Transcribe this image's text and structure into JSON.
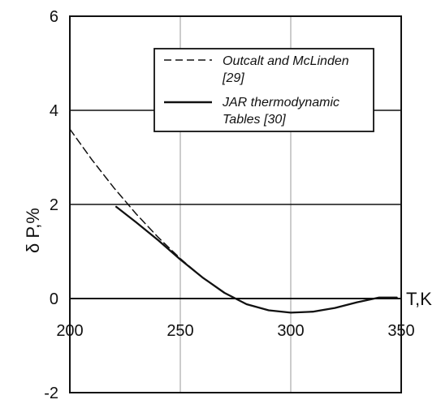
{
  "chart_data": {
    "type": "line",
    "xlabel": "T,K",
    "ylabel": "δ P,%",
    "xlim": [
      200,
      350
    ],
    "ylim": [
      -2,
      6
    ],
    "x_ticks": [
      "200",
      "250",
      "300",
      "350"
    ],
    "y_ticks": [
      "-2",
      "0",
      "2",
      "4",
      "6"
    ],
    "grid": true,
    "legend_position": "top-right",
    "series": [
      {
        "name": "Outcalt and McLinden [29]",
        "line_style": "dashed",
        "color": "#111111",
        "x": [
          200,
          210,
          220,
          230,
          240,
          250,
          260,
          270,
          280,
          290,
          300,
          310,
          320,
          330,
          340,
          348
        ],
        "y": [
          3.6,
          2.95,
          2.35,
          1.8,
          1.3,
          0.85,
          0.45,
          0.12,
          -0.12,
          -0.25,
          -0.3,
          -0.28,
          -0.2,
          -0.08,
          0.02,
          0.02
        ]
      },
      {
        "name": "JAR thermodynamic Tables [30]",
        "line_style": "solid",
        "color": "#111111",
        "x": [
          221,
          230,
          240,
          250,
          260,
          270,
          280,
          290,
          300,
          310,
          320,
          330,
          340,
          348
        ],
        "y": [
          1.95,
          1.62,
          1.24,
          0.83,
          0.45,
          0.12,
          -0.12,
          -0.25,
          -0.3,
          -0.28,
          -0.2,
          -0.08,
          0.02,
          0.02
        ]
      }
    ],
    "legend": [
      {
        "lines": [
          "Outcalt and McLinden",
          "[29]"
        ],
        "line_style": "dashed"
      },
      {
        "lines": [
          "JAR thermodynamic",
          "Tables [30]"
        ],
        "line_style": "solid"
      }
    ]
  }
}
